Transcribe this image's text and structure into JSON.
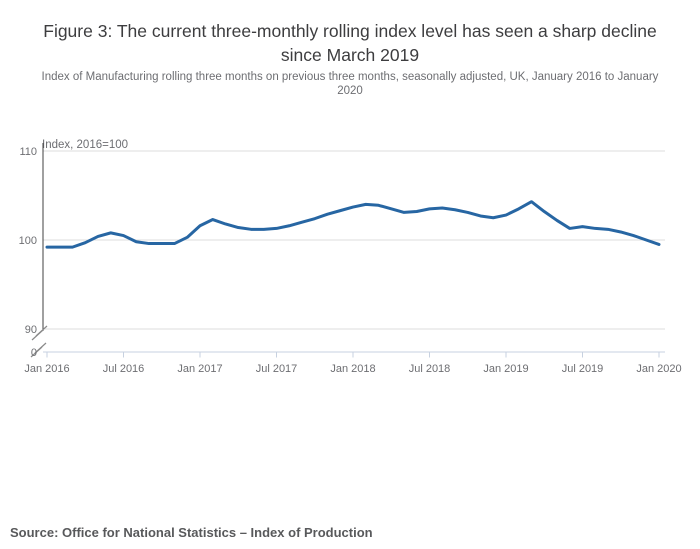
{
  "header": {
    "title": "Figure 3: The current three-monthly rolling index level has seen a sharp decline since March 2019",
    "subtitle": "Index of Manufacturing rolling three months on previous three months, seasonally adjusted, UK, January 2016 to January 2020"
  },
  "footer": {
    "source": "Source: Office for National Statistics – Index of Production"
  },
  "colors": {
    "line": "#2766a3",
    "grid": "#dcdcdc",
    "y_axis": "#414042",
    "x_axis": "#c7d1e0",
    "tick_text": "#6d6e72",
    "break_mark": "#8a8a8a"
  },
  "chart_data": {
    "type": "line",
    "title": "",
    "ylabel": "Index, 2016=100",
    "xlabel": "",
    "series_name": "Index of Manufacturing, rolling three-month index level",
    "grid": true,
    "legend": "none",
    "axis_break": true,
    "ylim": [
      90,
      110
    ],
    "y_gridline_values": [
      110,
      100,
      90
    ],
    "y_tick_labels": [
      "110",
      "100",
      "90",
      "0"
    ],
    "x_tick_labels": [
      "Jan 2016",
      "Jul 2016",
      "Jan 2017",
      "Jul 2017",
      "Jan 2018",
      "Jul 2018",
      "Jan 2019",
      "Jul 2019",
      "Jan 2020"
    ],
    "x": [
      "Jan 2016",
      "Feb 2016",
      "Mar 2016",
      "Apr 2016",
      "May 2016",
      "Jun 2016",
      "Jul 2016",
      "Aug 2016",
      "Sep 2016",
      "Oct 2016",
      "Nov 2016",
      "Dec 2016",
      "Jan 2017",
      "Feb 2017",
      "Mar 2017",
      "Apr 2017",
      "May 2017",
      "Jun 2017",
      "Jul 2017",
      "Aug 2017",
      "Sep 2017",
      "Oct 2017",
      "Nov 2017",
      "Dec 2017",
      "Jan 2018",
      "Feb 2018",
      "Mar 2018",
      "Apr 2018",
      "May 2018",
      "Jun 2018",
      "Jul 2018",
      "Aug 2018",
      "Sep 2018",
      "Oct 2018",
      "Nov 2018",
      "Dec 2018",
      "Jan 2019",
      "Feb 2019",
      "Mar 2019",
      "Apr 2019",
      "May 2019",
      "Jun 2019",
      "Jul 2019",
      "Aug 2019",
      "Sep 2019",
      "Oct 2019",
      "Nov 2019",
      "Dec 2019",
      "Jan 2020"
    ],
    "values": [
      99.2,
      99.2,
      99.2,
      99.7,
      100.4,
      100.8,
      100.5,
      99.8,
      99.6,
      99.6,
      99.6,
      100.3,
      101.6,
      102.3,
      101.8,
      101.4,
      101.2,
      101.2,
      101.3,
      101.6,
      102.0,
      102.4,
      102.9,
      103.3,
      103.7,
      104.0,
      103.9,
      103.5,
      103.1,
      103.2,
      103.5,
      103.6,
      103.4,
      103.1,
      102.7,
      102.5,
      102.8,
      103.5,
      104.3,
      103.2,
      102.2,
      101.3,
      101.5,
      101.3,
      101.2,
      100.9,
      100.5,
      100.0,
      99.5
    ]
  }
}
